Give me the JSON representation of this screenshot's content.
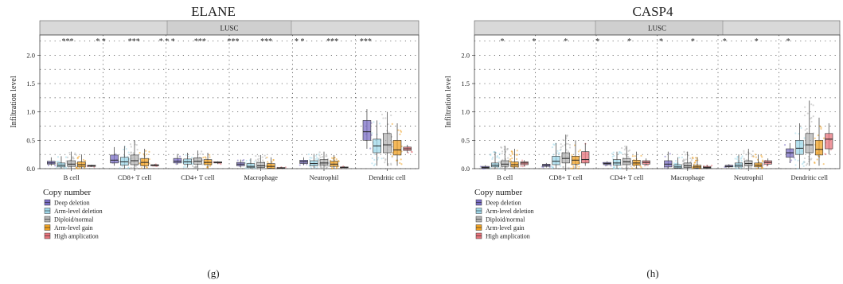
{
  "legend_title": "Copy number",
  "legend_items": [
    {
      "label": "Deep deletion",
      "color": "#7b6fc6"
    },
    {
      "label": "Arm-level deletion",
      "color": "#9fd8ea"
    },
    {
      "label": "Diploid/normal",
      "color": "#b4b4b4"
    },
    {
      "label": "Arm-level gain",
      "color": "#f0a224"
    },
    {
      "label": "High amplication",
      "color": "#e8747c"
    }
  ],
  "chart_data": [
    {
      "type": "boxplot",
      "title": "ELANE",
      "panel_letter": "(g)",
      "strip": "LUSC",
      "ylabel": "Infiltration level",
      "xlabel": "",
      "ylim": [
        0,
        2.3
      ],
      "yticks": [
        "0.0",
        "0.5",
        "1.0",
        "1.5",
        "2.0"
      ],
      "grid": true,
      "categories": [
        "B cell",
        "CD8+ T cell",
        "CD4+ T cell",
        "Macrophage",
        "Neutrophil",
        "Dendritic cell"
      ],
      "series": [
        {
          "name": "Deep deletion",
          "boxes": [
            [
              0.05,
              0.08,
              0.1,
              0.13,
              0.2
            ],
            [
              0.05,
              0.1,
              0.15,
              0.24,
              0.38
            ],
            [
              0.07,
              0.1,
              0.13,
              0.18,
              0.26
            ],
            [
              0.02,
              0.05,
              0.08,
              0.11,
              0.16
            ],
            [
              0.06,
              0.09,
              0.12,
              0.15,
              0.2
            ],
            [
              0.35,
              0.5,
              0.65,
              0.85,
              1.05
            ]
          ]
        },
        {
          "name": "Arm-level deletion",
          "boxes": [
            [
              0.0,
              0.03,
              0.06,
              0.1,
              0.22
            ],
            [
              0.0,
              0.06,
              0.12,
              0.2,
              0.4
            ],
            [
              0.02,
              0.08,
              0.12,
              0.17,
              0.28
            ],
            [
              0.0,
              0.02,
              0.04,
              0.09,
              0.18
            ],
            [
              0.01,
              0.05,
              0.09,
              0.14,
              0.26
            ],
            [
              0.05,
              0.28,
              0.4,
              0.52,
              0.85
            ]
          ]
        },
        {
          "name": "Diploid/normal",
          "boxes": [
            [
              0.0,
              0.04,
              0.08,
              0.14,
              0.3
            ],
            [
              0.0,
              0.07,
              0.14,
              0.24,
              0.5
            ],
            [
              0.02,
              0.08,
              0.13,
              0.19,
              0.32
            ],
            [
              0.0,
              0.02,
              0.05,
              0.11,
              0.24
            ],
            [
              0.01,
              0.06,
              0.1,
              0.16,
              0.3
            ],
            [
              0.05,
              0.28,
              0.42,
              0.62,
              1.0
            ]
          ]
        },
        {
          "name": "Arm-level gain",
          "boxes": [
            [
              0.0,
              0.03,
              0.07,
              0.12,
              0.25
            ],
            [
              0.0,
              0.05,
              0.11,
              0.18,
              0.35
            ],
            [
              0.02,
              0.07,
              0.11,
              0.16,
              0.28
            ],
            [
              0.0,
              0.01,
              0.04,
              0.09,
              0.2
            ],
            [
              0.0,
              0.04,
              0.08,
              0.13,
              0.24
            ],
            [
              0.05,
              0.24,
              0.33,
              0.5,
              0.8
            ]
          ]
        },
        {
          "name": "High amplication",
          "boxes": [
            [
              0.03,
              0.04,
              0.05,
              0.06,
              0.07
            ],
            [
              0.04,
              0.05,
              0.06,
              0.07,
              0.08
            ],
            [
              0.08,
              0.1,
              0.11,
              0.12,
              0.13
            ],
            [
              0.0,
              0.01,
              0.01,
              0.02,
              0.03
            ],
            [
              0.01,
              0.02,
              0.02,
              0.03,
              0.04
            ],
            [
              0.28,
              0.32,
              0.35,
              0.38,
              0.42
            ]
          ]
        }
      ],
      "significance": [
        "***",
        "* *",
        "***",
        "*  *  *",
        "***",
        "***",
        "***",
        "*  *",
        "***",
        "***"
      ]
    },
    {
      "type": "boxplot",
      "title": "CASP4",
      "panel_letter": "(h)",
      "strip": "LUSC",
      "ylabel": "Infiltration level",
      "xlabel": "",
      "ylim": [
        0,
        2.3
      ],
      "yticks": [
        "0.0",
        "0.5",
        "1.0",
        "1.5",
        "2.0"
      ],
      "grid": true,
      "categories": [
        "B cell",
        "CD8+ T cell",
        "CD4+ T cell",
        "Macrophage",
        "Neutrophil",
        "Dendritic cell"
      ],
      "series": [
        {
          "name": "Deep deletion",
          "boxes": [
            [
              0.0,
              0.01,
              0.02,
              0.04,
              0.06
            ],
            [
              0.02,
              0.04,
              0.06,
              0.08,
              0.1
            ],
            [
              0.05,
              0.07,
              0.09,
              0.11,
              0.13
            ],
            [
              0.0,
              0.03,
              0.08,
              0.14,
              0.3
            ],
            [
              0.01,
              0.03,
              0.04,
              0.06,
              0.08
            ],
            [
              0.1,
              0.2,
              0.28,
              0.35,
              0.45
            ]
          ]
        },
        {
          "name": "Arm-level deletion",
          "boxes": [
            [
              0.0,
              0.03,
              0.06,
              0.1,
              0.3
            ],
            [
              0.0,
              0.07,
              0.13,
              0.22,
              0.45
            ],
            [
              0.0,
              0.06,
              0.1,
              0.16,
              0.3
            ],
            [
              0.0,
              0.01,
              0.03,
              0.07,
              0.2
            ],
            [
              0.0,
              0.03,
              0.06,
              0.1,
              0.25
            ],
            [
              0.0,
              0.25,
              0.36,
              0.5,
              0.8
            ]
          ]
        },
        {
          "name": "Diploid/normal",
          "boxes": [
            [
              0.0,
              0.04,
              0.08,
              0.14,
              0.4
            ],
            [
              0.0,
              0.1,
              0.18,
              0.28,
              0.6
            ],
            [
              0.0,
              0.07,
              0.12,
              0.18,
              0.4
            ],
            [
              0.0,
              0.02,
              0.05,
              0.1,
              0.3
            ],
            [
              0.0,
              0.05,
              0.09,
              0.14,
              0.35
            ],
            [
              0.05,
              0.28,
              0.42,
              0.62,
              1.2
            ]
          ]
        },
        {
          "name": "Arm-level gain",
          "boxes": [
            [
              0.0,
              0.03,
              0.07,
              0.12,
              0.35
            ],
            [
              0.0,
              0.08,
              0.15,
              0.22,
              0.5
            ],
            [
              0.0,
              0.06,
              0.1,
              0.15,
              0.3
            ],
            [
              0.0,
              0.01,
              0.03,
              0.06,
              0.2
            ],
            [
              0.0,
              0.03,
              0.06,
              0.1,
              0.25
            ],
            [
              0.05,
              0.24,
              0.34,
              0.5,
              0.9
            ]
          ]
        },
        {
          "name": "High amplication",
          "boxes": [
            [
              0.04,
              0.07,
              0.1,
              0.12,
              0.15
            ],
            [
              0.05,
              0.1,
              0.16,
              0.3,
              0.45
            ],
            [
              0.05,
              0.08,
              0.11,
              0.14,
              0.18
            ],
            [
              0.0,
              0.01,
              0.02,
              0.04,
              0.06
            ],
            [
              0.05,
              0.08,
              0.11,
              0.14,
              0.18
            ],
            [
              0.25,
              0.35,
              0.52,
              0.62,
              0.8
            ]
          ]
        }
      ],
      "significance": [
        "*",
        "*",
        "*",
        "*",
        "*",
        "*",
        "*",
        "*",
        "*",
        "*"
      ]
    }
  ]
}
